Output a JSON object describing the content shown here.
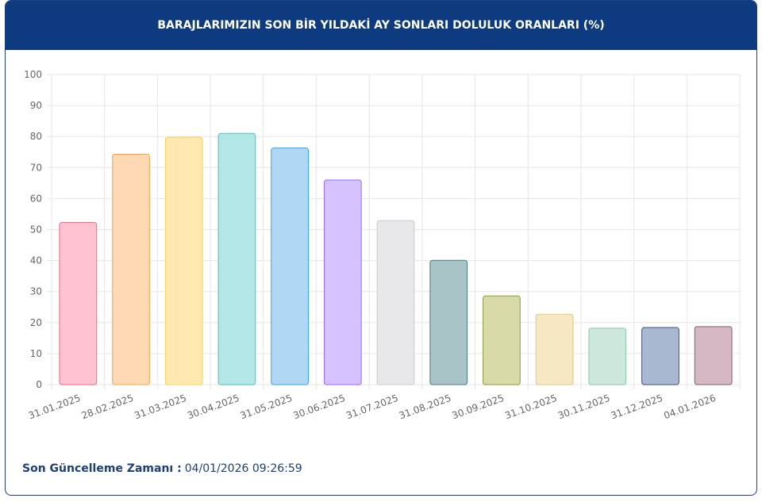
{
  "header": {
    "title": "BARAJLARIMIZIN SON BİR YILDAKİ AY SONLARI DOLULUK ORANLARI (%)"
  },
  "chart_data": {
    "type": "bar",
    "categories": [
      "31.01.2025",
      "28.02.2025",
      "31.03.2025",
      "30.04.2025",
      "31.05.2025",
      "30.06.2025",
      "31.07.2025",
      "31.08.2025",
      "30.09.2025",
      "31.10.2025",
      "30.11.2025",
      "31.12.2025",
      "04.01.2026"
    ],
    "values": [
      52.3,
      74.3,
      79.8,
      81.0,
      76.3,
      66.0,
      52.9,
      40.1,
      28.6,
      22.7,
      18.2,
      18.4,
      18.7
    ],
    "colors": [
      "#ffc2d0",
      "#ffd9b3",
      "#ffe9b0",
      "#b3e6e6",
      "#b0d8f5",
      "#d5c2ff",
      "#e8e8ea",
      "#a9c4c7",
      "#d8dba8",
      "#f7e8c4",
      "#cce8dc",
      "#a8b8d0",
      "#d6b8c4"
    ],
    "border_colors": [
      "#ff6384",
      "#ff9f40",
      "#ffcd56",
      "#4bc0c0",
      "#36a2eb",
      "#9966ff",
      "#c9cbcf",
      "#4a7c80",
      "#8a9a3a",
      "#e0c77a",
      "#8cc4aa",
      "#3a5078",
      "#8a5a6a"
    ],
    "ylim": [
      0,
      100
    ],
    "yticks": [
      0,
      10,
      20,
      30,
      40,
      50,
      60,
      70,
      80,
      90,
      100
    ],
    "grid": true
  },
  "footer": {
    "label": "Son Güncelleme Zamanı :",
    "value": "04/01/2026 09:26:59"
  }
}
